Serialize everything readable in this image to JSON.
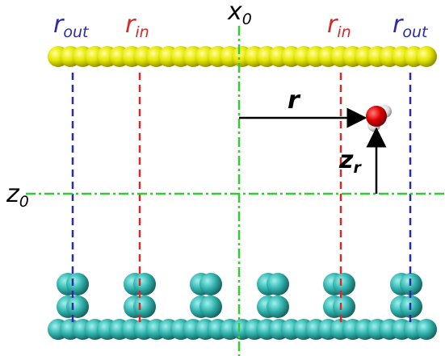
{
  "labels": {
    "left_r_out": {
      "symbol": "r",
      "subscript": "out"
    },
    "left_r_in": {
      "symbol": "r",
      "subscript": "in"
    },
    "x_axis": {
      "symbol": "x",
      "subscript": "0"
    },
    "right_r_in": {
      "symbol": "r",
      "subscript": "in"
    },
    "right_r_out": {
      "symbol": "r",
      "subscript": "out"
    },
    "z_axis": {
      "symbol": "z",
      "subscript": "0"
    },
    "distance": "r",
    "height": {
      "symbol": "z",
      "subscript": "r"
    }
  }
}
